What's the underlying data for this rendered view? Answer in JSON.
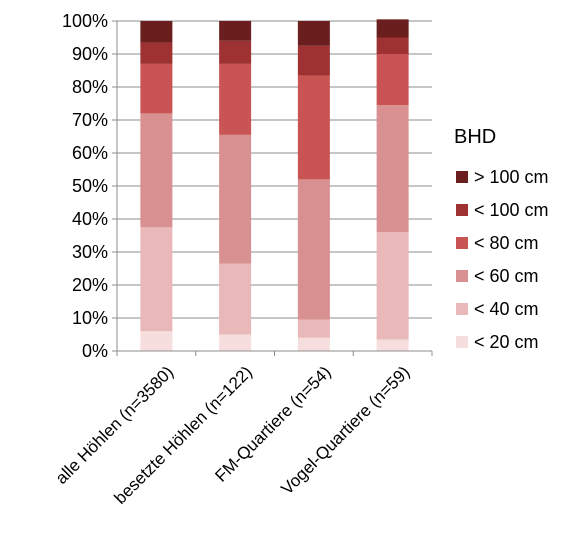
{
  "chart_data": {
    "type": "bar",
    "stacked": true,
    "percent": true,
    "categories": [
      "alle Höhlen (n=3580)",
      "besetzte Höhlen (n=122)",
      "FM-Quartiere (n=54)",
      "Vogel-Quartiere (n=59)"
    ],
    "series": [
      {
        "name": "< 20 cm",
        "color": "#f6dede",
        "values": [
          6,
          5,
          4,
          3.5
        ]
      },
      {
        "name": "< 40 cm",
        "color": "#e9b8b8",
        "values": [
          31.5,
          21.5,
          5.5,
          32.5
        ]
      },
      {
        "name": "< 60 cm",
        "color": "#d99090",
        "values": [
          34.5,
          39,
          42.5,
          38.5
        ]
      },
      {
        "name": "< 80 cm",
        "color": "#c95454",
        "values": [
          15,
          21.5,
          31.5,
          15.5
        ]
      },
      {
        "name": "< 100 cm",
        "color": "#9e3232",
        "values": [
          6.5,
          7,
          9,
          5
        ]
      },
      {
        "name": "> 100 cm",
        "color": "#6b1e1e",
        "values": [
          6.5,
          6,
          7.5,
          5.5
        ]
      }
    ],
    "ylim": [
      0,
      100
    ],
    "ytick_labels": [
      "0%",
      "10%",
      "20%",
      "30%",
      "40%",
      "50%",
      "60%",
      "70%",
      "80%",
      "90%",
      "100%"
    ],
    "grid": true,
    "legend": {
      "title": "BHD",
      "position": "right",
      "order": [
        "> 100 cm",
        "< 100 cm",
        "< 80 cm",
        "< 60 cm",
        "< 40 cm",
        "< 20 cm"
      ]
    }
  }
}
